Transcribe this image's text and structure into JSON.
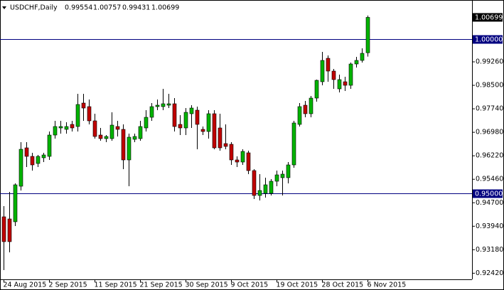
{
  "chart_data": {
    "type": "candlestick",
    "title": "USDCHF,Daily",
    "categories": [
      "24 Aug 2015",
      null,
      null,
      null,
      null,
      null,
      null,
      null,
      "2 Sep 2015",
      null,
      null,
      null,
      null,
      null,
      null,
      null,
      "11 Sep 2015",
      null,
      null,
      null,
      null,
      null,
      null,
      null,
      "21 Sep 2015",
      null,
      null,
      null,
      null,
      null,
      null,
      null,
      "30 Sep 2015",
      null,
      null,
      null,
      null,
      null,
      null,
      null,
      "9 Oct 2015",
      null,
      null,
      null,
      null,
      null,
      null,
      null,
      "19 Oct 2015",
      null,
      null,
      null,
      null,
      null,
      null,
      null,
      "28 Oct 2015",
      null,
      null,
      null,
      null,
      null,
      null,
      null,
      "6 Nov 2015"
    ],
    "open": [
      0.94246,
      0.94177,
      0.94085,
      0.95235,
      0.96477,
      0.96201,
      0.95971,
      0.96155,
      0.96201,
      0.96891,
      0.97121,
      0.97075,
      0.97236,
      0.97167,
      0.97926,
      0.97811,
      0.97351,
      0.96891,
      0.96776,
      0.96776,
      0.97167,
      0.97075,
      0.96086,
      0.96753,
      0.96776,
      0.97121,
      0.97466,
      0.97811,
      0.97811,
      0.97857,
      0.97903,
      0.97236,
      0.97121,
      0.97581,
      0.97696,
      0.97075,
      0.97006,
      0.97581,
      0.97121,
      0.96615,
      0.96592,
      0.96086,
      0.96017,
      0.96316,
      0.95741,
      0.94936,
      0.95005,
      0.95005,
      0.95396,
      0.95511,
      0.95511,
      0.95925,
      0.97236,
      0.97857,
      0.97581,
      0.98087,
      0.98616,
      0.99375,
      0.98961,
      0.98386,
      0.98616,
      0.98501,
      0.99191,
      0.99306,
      0.99554
    ],
    "high": [
      0.94591,
      0.95051,
      0.95327,
      0.96661,
      0.96661,
      0.96316,
      0.96247,
      0.96316,
      0.97006,
      0.97351,
      0.97351,
      0.97305,
      0.97351,
      0.98225,
      0.98225,
      0.98041,
      0.97581,
      0.97121,
      0.96891,
      0.97627,
      0.97351,
      0.97236,
      0.96937,
      0.96937,
      0.97351,
      0.97696,
      0.97926,
      0.98041,
      0.98386,
      0.98225,
      0.98087,
      0.97535,
      0.97765,
      0.97857,
      0.97811,
      0.97167,
      0.97696,
      0.97696,
      0.97581,
      0.97236,
      0.96661,
      0.96201,
      0.96431,
      0.96385,
      0.95787,
      0.95626,
      0.95511,
      0.95465,
      0.95741,
      0.95741,
      0.96017,
      0.97351,
      0.97926,
      0.97995,
      0.98156,
      0.98685,
      0.99582,
      0.99467,
      0.9903,
      0.98846,
      0.98777,
      0.99237,
      0.99421,
      0.99697,
      1.00757
    ],
    "low": [
      0.92521,
      0.93096,
      0.93947,
      0.95097,
      0.95856,
      0.95741,
      0.95856,
      0.96017,
      0.96086,
      0.96776,
      0.96937,
      0.96937,
      0.97006,
      0.97006,
      0.97351,
      0.97236,
      0.96776,
      0.96707,
      0.96661,
      0.96707,
      0.96845,
      0.95787,
      0.95235,
      0.96661,
      0.96707,
      0.97006,
      0.97351,
      0.97696,
      0.97696,
      0.97765,
      0.97006,
      0.96891,
      0.96891,
      0.97121,
      0.96431,
      0.96891,
      0.96776,
      0.96431,
      0.96385,
      0.96431,
      0.95925,
      0.95856,
      0.95925,
      0.95626,
      0.94821,
      0.94775,
      0.94867,
      0.94936,
      0.95235,
      0.94936,
      0.95327,
      0.95833,
      0.97167,
      0.97466,
      0.97466,
      0.97972,
      0.98501,
      0.98616,
      0.98386,
      0.98271,
      0.98317,
      0.98386,
      0.99076,
      0.99237,
      0.99431
    ],
    "close": [
      0.93441,
      0.93441,
      0.95281,
      0.96431,
      0.96201,
      0.95925,
      0.96201,
      0.96247,
      0.96891,
      0.97167,
      0.97167,
      0.97167,
      0.97121,
      0.9788,
      0.97765,
      0.97351,
      0.96845,
      0.96776,
      0.96845,
      0.97213,
      0.97075,
      0.96086,
      0.96822,
      0.96845,
      0.97167,
      0.97466,
      0.97811,
      0.97857,
      0.97903,
      0.97903,
      0.97167,
      0.97121,
      0.97627,
      0.97765,
      0.97236,
      0.97006,
      0.97581,
      0.96477,
      0.96477,
      0.96523,
      0.96086,
      0.96017,
      0.96362,
      0.95741,
      0.94936,
      0.95097,
      0.95281,
      0.95396,
      0.95603,
      0.95626,
      0.95925,
      0.97282,
      0.97811,
      0.97581,
      0.98087,
      0.98662,
      0.99306,
      0.98961,
      0.98685,
      0.98685,
      0.98501,
      0.99191,
      0.99306,
      0.99536,
      1.00699
    ],
    "up_color": "#00b300",
    "down_color": "#c00000",
    "ylim": [
      0.92222,
      1.01146
    ],
    "yticks": [
      {
        "value": 0.9926,
        "label": "0.99260"
      },
      {
        "value": 0.985,
        "label": "0.98500"
      },
      {
        "value": 0.9774,
        "label": "0.97740"
      },
      {
        "value": 0.9698,
        "label": "0.96980"
      },
      {
        "value": 0.9622,
        "label": "0.96220"
      },
      {
        "value": 0.9546,
        "label": "0.95460"
      },
      {
        "value": 0.947,
        "label": "0.94700"
      },
      {
        "value": 0.9394,
        "label": "0.93940"
      },
      {
        "value": 0.9318,
        "label": "0.93180"
      },
      {
        "value": 0.9242,
        "label": "0.92420"
      }
    ],
    "hlines": [
      {
        "value": 1.0,
        "label": "1.00000"
      },
      {
        "value": 0.95,
        "label": "0.95000"
      }
    ],
    "hline_color": "#000080"
  }
}
